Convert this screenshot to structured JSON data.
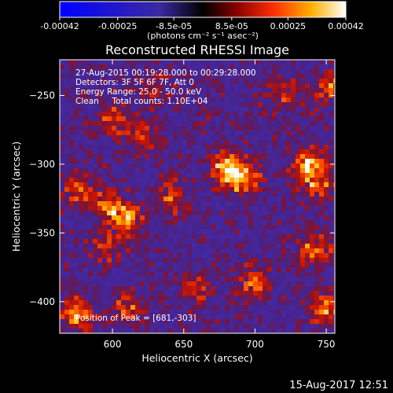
{
  "chart_data": {
    "type": "heatmap",
    "title": "Reconstructed RHESSI Image",
    "xlabel": "Heliocentric X (arcsec)",
    "ylabel": "Heliocentric Y (arcsec)",
    "xlim": [
      563,
      756
    ],
    "ylim": [
      -423,
      -224
    ],
    "xticks": [
      600,
      650,
      700,
      750
    ],
    "yticks": [
      -250,
      -300,
      -350,
      -400
    ],
    "colorbar": {
      "ticks": [
        "-0.00042",
        "-0.00025",
        "-8.5e-05",
        "8.5e-05",
        "0.00025",
        "0.00042"
      ],
      "tick_values": [
        -0.00042,
        -0.00025,
        -8.5e-05,
        8.5e-05,
        0.00025,
        0.00042
      ],
      "range": [
        -0.00042,
        0.00042
      ],
      "unit_label": "(photons cm⁻² s⁻¹ asec⁻²)"
    },
    "annotations": [
      "27-Aug-2015 00:19:28.000 to 00:29:28.000",
      "Detectors: 3F 5F 6F 7F, Att 0",
      "Energy Range: 25.0 - 50.0 keV",
      "Clean     Total counts: 1.10E+04",
      "Position of Peak = [681,-303]"
    ],
    "peak": [
      681,
      -303
    ],
    "blobs": [
      {
        "x": 681,
        "y": -303,
        "value": 0.00042
      },
      {
        "x": 693,
        "y": -312,
        "value": 0.0003
      },
      {
        "x": 737,
        "y": -300,
        "value": 0.00033
      },
      {
        "x": 745,
        "y": -315,
        "value": 0.00025
      },
      {
        "x": 610,
        "y": -340,
        "value": 0.00033
      },
      {
        "x": 595,
        "y": -330,
        "value": 0.00026
      },
      {
        "x": 640,
        "y": -325,
        "value": 0.00024
      },
      {
        "x": 575,
        "y": -318,
        "value": 0.00027
      },
      {
        "x": 620,
        "y": -280,
        "value": 0.00022
      },
      {
        "x": 600,
        "y": -267,
        "value": 0.00024
      },
      {
        "x": 595,
        "y": -360,
        "value": 0.00021
      },
      {
        "x": 575,
        "y": -410,
        "value": 0.00033
      },
      {
        "x": 610,
        "y": -405,
        "value": 0.00024
      },
      {
        "x": 700,
        "y": -385,
        "value": 0.00026
      },
      {
        "x": 750,
        "y": -405,
        "value": 0.0003
      },
      {
        "x": 742,
        "y": -362,
        "value": 0.00027
      },
      {
        "x": 752,
        "y": -245,
        "value": 0.00025
      },
      {
        "x": 720,
        "y": -250,
        "value": 0.00018
      },
      {
        "x": 660,
        "y": -390,
        "value": 0.0002
      },
      {
        "x": 630,
        "y": -245,
        "value": 0.00016
      }
    ]
  },
  "footer": {
    "date_stamp": "15-Aug-2017 12:51"
  }
}
